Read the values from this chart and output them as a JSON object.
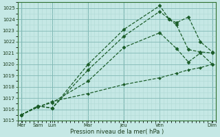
{
  "xlabel": "Pression niveau de la mer( hPa )",
  "bg_color": "#c5e8e5",
  "grid_color_minor": "#b0d8d4",
  "grid_color_major": "#80b8b4",
  "line_color": "#1a5c28",
  "ylim": [
    1015.0,
    1025.5
  ],
  "yticks": [
    1015,
    1016,
    1017,
    1018,
    1019,
    1020,
    1021,
    1022,
    1023,
    1024,
    1025
  ],
  "xlim": [
    -0.15,
    8.15
  ],
  "xtick_positions": [
    0,
    0.7,
    1.3,
    2.8,
    4.3,
    5.8,
    8.0
  ],
  "xtick_labels": [
    "Mer",
    "Sam",
    "Lun",
    "Mar",
    "Jeu",
    "Ven",
    "Dim"
  ],
  "series": [
    {
      "x": [
        0,
        0.7,
        1.3,
        2.8,
        4.3,
        5.8,
        6.2,
        6.5,
        7.0,
        7.5,
        8.0
      ],
      "y": [
        1015.5,
        1016.3,
        1016.1,
        1020.0,
        1023.1,
        1025.2,
        1024.0,
        1023.5,
        1021.3,
        1021.1,
        1021.0
      ],
      "marker": "D",
      "markersize": 2.5,
      "linewidth": 0.9,
      "linestyle": "--"
    },
    {
      "x": [
        0,
        0.7,
        1.3,
        2.8,
        4.3,
        5.8,
        6.2,
        6.5,
        7.0,
        7.5,
        8.0
      ],
      "y": [
        1015.5,
        1016.3,
        1016.1,
        1019.5,
        1022.5,
        1024.7,
        1024.0,
        1023.7,
        1024.2,
        1022.0,
        1021.1
      ],
      "marker": "D",
      "markersize": 2.5,
      "linewidth": 0.9,
      "linestyle": "--"
    },
    {
      "x": [
        0,
        0.7,
        1.3,
        2.8,
        4.3,
        5.8,
        6.5,
        7.0,
        7.5,
        8.0
      ],
      "y": [
        1015.5,
        1016.2,
        1016.6,
        1018.5,
        1021.5,
        1022.8,
        1021.4,
        1020.2,
        1021.0,
        1020.0
      ],
      "marker": "D",
      "markersize": 2.5,
      "linewidth": 0.9,
      "linestyle": "--"
    },
    {
      "x": [
        0,
        0.7,
        1.3,
        2.8,
        4.3,
        5.8,
        6.5,
        7.0,
        7.5,
        8.0
      ],
      "y": [
        1015.5,
        1016.2,
        1016.7,
        1017.4,
        1018.2,
        1018.8,
        1019.2,
        1019.5,
        1019.7,
        1020.0
      ],
      "marker": "D",
      "markersize": 2.0,
      "linewidth": 0.9,
      "linestyle": "--"
    }
  ]
}
